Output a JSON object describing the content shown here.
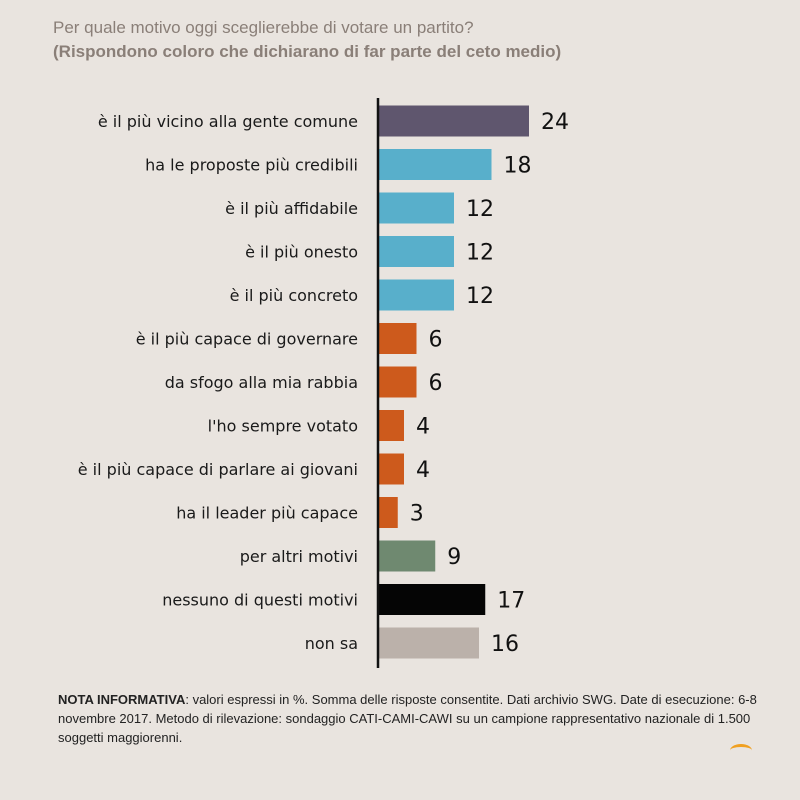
{
  "title": "Per quale motivo oggi sceglierebbe di votare un partito?",
  "subtitle": "(Rispondono coloro che dichiarano di far parte del ceto medio)",
  "chart_data": {
    "type": "bar",
    "orientation": "horizontal",
    "categories": [
      "è il più vicino alla gente comune",
      "ha le proposte più credibili",
      "è il più affidabile",
      "è il più onesto",
      "è il più concreto",
      "è il più capace di governare",
      "da sfogo alla mia rabbia",
      "l'ho sempre votato",
      "è il più capace di parlare ai giovani",
      "ha il leader più capace",
      "per altri motivi",
      "nessuno di questi motivi",
      "non sa"
    ],
    "values": [
      24,
      18,
      12,
      12,
      12,
      6,
      6,
      4,
      4,
      3,
      9,
      17,
      16
    ],
    "colors": [
      "#5f566e",
      "#58afcb",
      "#58afcb",
      "#58afcb",
      "#58afcb",
      "#cd5a1c",
      "#cd5a1c",
      "#cd5a1c",
      "#cd5a1c",
      "#cd5a1c",
      "#6f8970",
      "#050505",
      "#bbb1aa"
    ],
    "xlim": [
      0,
      25
    ],
    "legend": "none",
    "grid": false
  },
  "note": {
    "label": "NOTA INFORMATIVA",
    "text": ": valori espressi in %. Somma delle risposte consentite. Dati archivio SWG. Date di esecuzione: 6-8 novembre 2017.  Metodo di rilevazione: sondaggio CATI-CAMI-CAWI su un campione rappresentativo nazionale di 1.500 soggetti maggiorenni."
  }
}
